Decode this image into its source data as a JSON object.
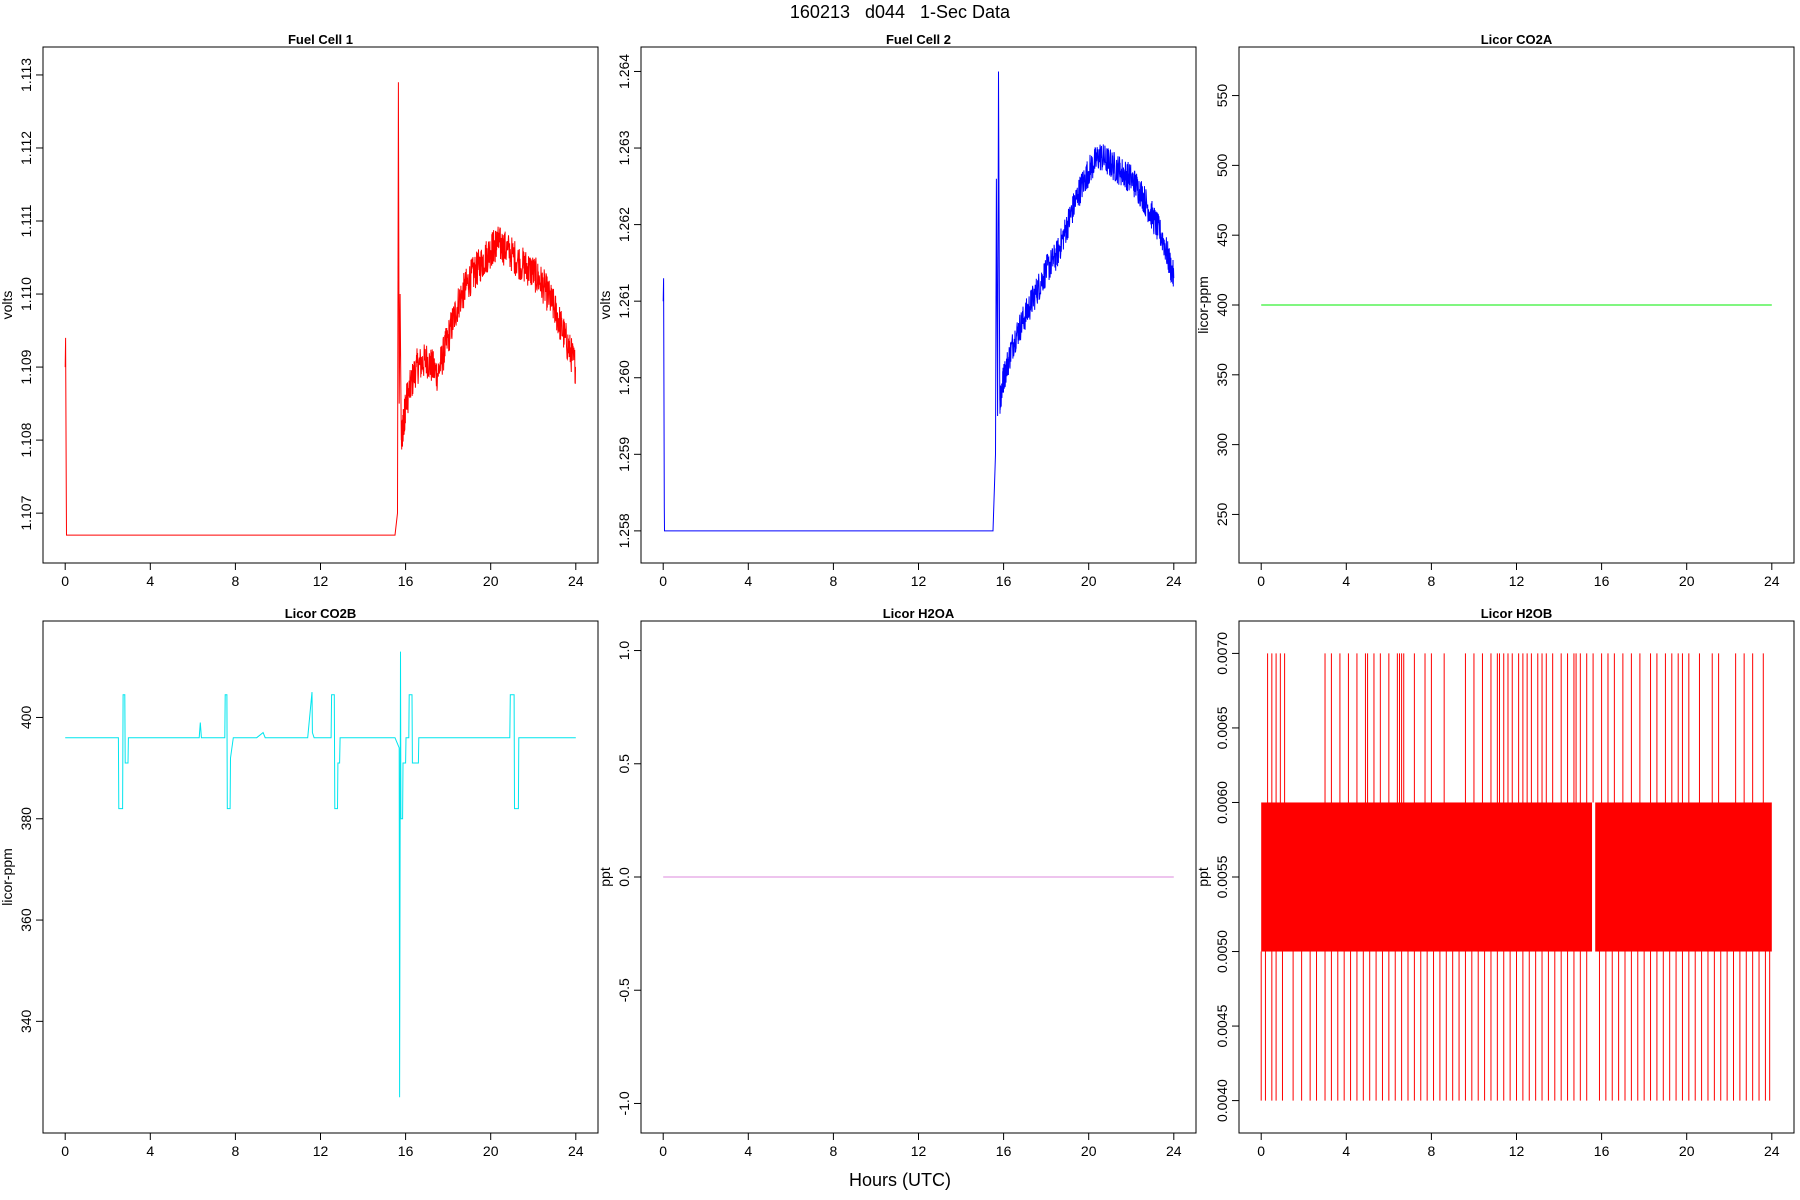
{
  "page": {
    "title": "160213   d044   1-Sec Data",
    "xlabel": "Hours (UTC)"
  },
  "chart_data": [
    {
      "type": "line",
      "title": "Fuel Cell 1",
      "ylabel": "volts",
      "color": "#ff0000",
      "xlim": [
        0,
        24
      ],
      "ylim": [
        1.1066,
        1.1131
      ],
      "xticks": [
        0,
        4,
        8,
        12,
        16,
        20,
        24
      ],
      "xtick_labels": [
        "0",
        "4",
        "8",
        "12",
        "16",
        "20",
        "24"
      ],
      "yticks": [
        1.107,
        1.108,
        1.109,
        1.11,
        1.111,
        1.112,
        1.113
      ],
      "ytick_labels": [
        "1.107",
        "1.108",
        "1.109",
        "1.110",
        "1.111",
        "1.112",
        "1.113"
      ],
      "series": [
        {
          "x": [
            0,
            0.02,
            0.05,
            0.06,
            15.5,
            15.62,
            15.66,
            15.7,
            15.74,
            15.8,
            15.9,
            16.0,
            16.5,
            17.0,
            17.5,
            18.0,
            18.5,
            19.0,
            19.5,
            20.0,
            20.3,
            20.8,
            21.5,
            22.0,
            22.5,
            23.0,
            23.5,
            24.0
          ],
          "y": [
            1.109,
            1.1094,
            1.1072,
            1.1067,
            1.1067,
            1.107,
            1.1129,
            1.1085,
            1.11,
            1.108,
            1.1082,
            1.1085,
            1.109,
            1.1091,
            1.1089,
            1.1094,
            1.1099,
            1.1102,
            1.1104,
            1.1106,
            1.1107,
            1.1106,
            1.1104,
            1.1103,
            1.1101,
            1.1098,
            1.1094,
            1.109
          ],
          "noise": 0.00025
        }
      ]
    },
    {
      "type": "line",
      "title": "Fuel Cell 2",
      "ylabel": "volts",
      "color": "#0000ff",
      "xlim": [
        0,
        24
      ],
      "ylim": [
        1.25785,
        1.26405
      ],
      "xticks": [
        0,
        4,
        8,
        12,
        16,
        20,
        24
      ],
      "xtick_labels": [
        "0",
        "4",
        "8",
        "12",
        "16",
        "20",
        "24"
      ],
      "yticks": [
        1.258,
        1.259,
        1.26,
        1.261,
        1.262,
        1.263,
        1.264
      ],
      "ytick_labels": [
        "1.258",
        "1.259",
        "1.260",
        "1.261",
        "1.262",
        "1.263",
        "1.264"
      ],
      "series": [
        {
          "x": [
            0,
            0.02,
            0.05,
            0.06,
            15.5,
            15.62,
            15.66,
            15.72,
            15.76,
            15.82,
            16.0,
            16.5,
            17.0,
            17.5,
            18.0,
            18.5,
            19.0,
            19.5,
            20.0,
            20.5,
            21.0,
            21.5,
            22.0,
            22.5,
            23.0,
            23.5,
            24.0
          ],
          "y": [
            1.261,
            1.2613,
            1.2583,
            1.258,
            1.258,
            1.259,
            1.2626,
            1.2595,
            1.264,
            1.2597,
            1.26,
            1.2605,
            1.2608,
            1.2611,
            1.2614,
            1.2616,
            1.262,
            1.2624,
            1.2627,
            1.2629,
            1.2628,
            1.2627,
            1.2626,
            1.2624,
            1.2621,
            1.2618,
            1.2613
          ],
          "noise": 0.0002
        }
      ]
    },
    {
      "type": "line",
      "title": "Licor CO2A",
      "ylabel": "licor-ppm",
      "color": "#00ee00",
      "xlim": [
        0,
        24
      ],
      "ylim": [
        230,
        570
      ],
      "xticks": [
        0,
        4,
        8,
        12,
        16,
        20,
        24
      ],
      "xtick_labels": [
        "0",
        "4",
        "8",
        "12",
        "16",
        "20",
        "24"
      ],
      "yticks": [
        250,
        300,
        350,
        400,
        450,
        500,
        550
      ],
      "ytick_labels": [
        "250",
        "300",
        "350",
        "400",
        "450",
        "500",
        "550"
      ],
      "series": [
        {
          "x": [
            0,
            24
          ],
          "y": [
            400,
            400
          ]
        }
      ]
    },
    {
      "type": "line",
      "title": "Licor CO2B",
      "ylabel": "licor-ppm",
      "color": "#00e5ee",
      "xlim": [
        0,
        24
      ],
      "ylim": [
        322,
        415
      ],
      "xticks": [
        0,
        4,
        8,
        12,
        16,
        20,
        24
      ],
      "xtick_labels": [
        "0",
        "4",
        "8",
        "12",
        "16",
        "20",
        "24"
      ],
      "yticks": [
        340,
        360,
        380,
        400
      ],
      "ytick_labels": [
        "340",
        "360",
        "380",
        "400"
      ],
      "series": [
        {
          "x": [
            0,
            2.5,
            2.52,
            2.7,
            2.72,
            2.8,
            2.82,
            2.95,
            2.97,
            3.1,
            5.0,
            6.3,
            6.35,
            6.4,
            6.5,
            7.5,
            7.52,
            7.6,
            7.62,
            7.75,
            7.77,
            7.9,
            9.0,
            9.3,
            9.4,
            10.5,
            11.4,
            11.6,
            11.62,
            11.7,
            12.5,
            12.52,
            12.65,
            12.67,
            12.8,
            12.82,
            12.9,
            12.92,
            13.0,
            13.1,
            15.5,
            15.6,
            15.7,
            15.72,
            15.76,
            15.78,
            15.86,
            15.88,
            16.0,
            16.02,
            16.15,
            16.17,
            16.3,
            16.32,
            16.6,
            16.62,
            16.8,
            19.0,
            20.9,
            20.92,
            21.1,
            21.12,
            21.3,
            21.32,
            21.5,
            24.0
          ],
          "y": [
            396,
            396,
            382,
            382,
            404.5,
            404.5,
            391,
            391,
            396,
            396,
            396,
            396,
            399,
            396,
            396,
            396,
            404.5,
            404.5,
            382,
            382,
            392,
            396,
            396,
            397,
            396,
            396,
            396,
            405,
            397,
            396,
            396,
            404.5,
            404.5,
            382,
            382,
            391,
            391,
            396,
            396,
            396,
            396,
            395,
            394,
            325,
            413,
            380,
            380,
            391,
            391,
            396,
            396,
            404.5,
            404.5,
            391,
            391,
            396,
            396,
            396,
            396,
            404.5,
            404.5,
            382,
            382,
            396,
            396,
            396
          ]
        }
      ]
    },
    {
      "type": "line",
      "title": "Licor H2OA",
      "ylabel": "ppt",
      "color": "#dd88dd",
      "xlim": [
        0,
        24
      ],
      "ylim": [
        -1.04,
        1.04
      ],
      "xticks": [
        0,
        4,
        8,
        12,
        16,
        20,
        24
      ],
      "xtick_labels": [
        "0",
        "4",
        "8",
        "12",
        "16",
        "20",
        "24"
      ],
      "yticks": [
        -1.0,
        -0.5,
        0.0,
        0.5,
        1.0
      ],
      "ytick_labels": [
        "-1.0",
        "-0.5",
        "0.0",
        "0.5",
        "1.0"
      ],
      "series": [
        {
          "x": [
            0,
            24
          ],
          "y": [
            0,
            0
          ]
        }
      ]
    },
    {
      "type": "line",
      "title": "Licor H2OB",
      "ylabel": "ppt",
      "color": "#ff0000",
      "xlim": [
        0,
        24
      ],
      "ylim": [
        0.00392,
        0.00708
      ],
      "xticks": [
        0,
        4,
        8,
        12,
        16,
        20,
        24
      ],
      "xtick_labels": [
        "0",
        "4",
        "8",
        "12",
        "16",
        "20",
        "24"
      ],
      "yticks": [
        0.004,
        0.0045,
        0.005,
        0.0055,
        0.006,
        0.0065,
        0.007
      ],
      "ytick_labels": [
        "0.0040",
        "0.0045",
        "0.0050",
        "0.0055",
        "0.0060",
        "0.0065",
        "0.0070"
      ],
      "series": [
        {
          "band_y": [
            0.005,
            0.006
          ],
          "band_gap_x": [
            15.55,
            15.7
          ],
          "spike_low_y": 0.004,
          "spike_high_y": 0.007,
          "spike_high_x": [
            0.3,
            0.5,
            0.7,
            0.9,
            1.1,
            3.0,
            3.3,
            3.7,
            4.1,
            4.5,
            4.9,
            5.0,
            5.3,
            5.6,
            6.0,
            6.4,
            6.5,
            6.6,
            6.7,
            7.2,
            7.7,
            8.0,
            8.6,
            9.6,
            10.0,
            10.4,
            10.8,
            11.1,
            11.2,
            11.4,
            11.6,
            11.8,
            12.1,
            12.3,
            12.5,
            12.7,
            13.0,
            13.2,
            13.4,
            13.7,
            14.1,
            14.4,
            14.7,
            14.8,
            15.0,
            15.3,
            15.6,
            16.0,
            16.3,
            16.6,
            17.0,
            17.4,
            17.8,
            18.3,
            18.6,
            19.0,
            19.3,
            19.6,
            19.8,
            20.1,
            20.6,
            21.2,
            21.5,
            22.3,
            22.7,
            23.1,
            23.6
          ],
          "spike_low_x": [
            0.2,
            0.5,
            0.7,
            1.0,
            1.5,
            1.9,
            2.3,
            2.6,
            3.0,
            3.3,
            3.6,
            3.9,
            4.2,
            4.5,
            4.8,
            5.1,
            5.4,
            5.7,
            6.0,
            6.3,
            6.6,
            6.9,
            7.2,
            7.5,
            7.8,
            8.1,
            8.4,
            8.7,
            9.0,
            9.3,
            9.6,
            9.9,
            10.2,
            10.5,
            10.8,
            11.1,
            11.4,
            11.7,
            12.0,
            12.3,
            12.6,
            12.9,
            13.2,
            13.5,
            13.8,
            14.1,
            14.4,
            14.7,
            15.0,
            15.3,
            15.9,
            16.2,
            16.5,
            16.8,
            17.1,
            17.4,
            17.7,
            18.0,
            18.3,
            18.6,
            18.9,
            19.2,
            19.5,
            19.8,
            20.1,
            20.4,
            20.7,
            21.0,
            21.3,
            21.6,
            21.9,
            22.2,
            22.5,
            22.8,
            23.1,
            23.4,
            23.7,
            23.9
          ]
        }
      ]
    }
  ]
}
